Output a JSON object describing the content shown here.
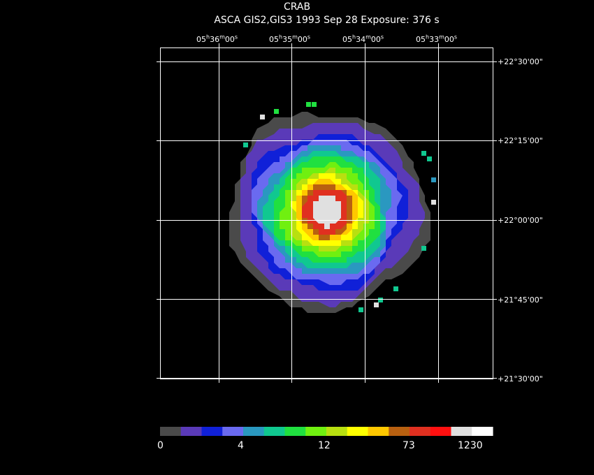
{
  "header": {
    "title": "CRAB",
    "subtitle": "ASCA GIS2,GIS3   1993 Sep 28    Exposure: 376 s"
  },
  "axes": {
    "ra_ticks": [
      "05h36m00s",
      "05h35m00s",
      "05h34m00s",
      "05h33m00s"
    ],
    "dec_ticks": [
      "+22°30'00\"",
      "+22°15'00\"",
      "+22°00'00\"",
      "+21°45'00\"",
      "+21°30'00\""
    ]
  },
  "colorbar": {
    "colors": [
      "#4a4a4a",
      "#5a3ab8",
      "#1020d8",
      "#6a6af0",
      "#2a98c0",
      "#10c890",
      "#20e040",
      "#70f010",
      "#b8e010",
      "#ffff00",
      "#ffc800",
      "#b86010",
      "#e03020",
      "#ff1010",
      "#e0e0e0",
      "#ffffff"
    ],
    "labels": [
      "0",
      "4",
      "12",
      "73",
      "1230"
    ]
  }
}
